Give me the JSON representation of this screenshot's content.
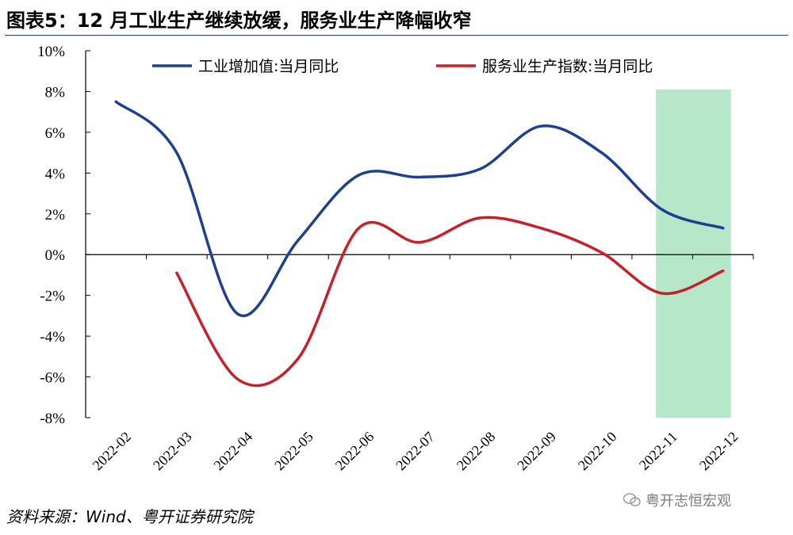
{
  "header": {
    "title": "图表5：12 月工业生产继续放缓，服务业生产降幅收窄"
  },
  "footer": {
    "source": "资料来源：Wind、粤开证券研究院"
  },
  "watermark": {
    "text": "粤开志恒宏观",
    "icon": "wechat-icon"
  },
  "colors": {
    "industry": "#1f3f8f",
    "service": "#c8202a",
    "highlight": "#b6e7c9",
    "axis": "#000000"
  },
  "chart_data": {
    "type": "line",
    "categories": [
      "2022-02",
      "2022-03",
      "2022-04",
      "2022-05",
      "2022-06",
      "2022-07",
      "2022-08",
      "2022-09",
      "2022-10",
      "2022-11",
      "2022-12"
    ],
    "y_ticks": [
      "10%",
      "8%",
      "6%",
      "4%",
      "2%",
      "0%",
      "-2%",
      "-4%",
      "-6%",
      "-8%"
    ],
    "ylim": [
      -8,
      10
    ],
    "y_unit": "%",
    "highlight_range": [
      "2022-11",
      "2022-12"
    ],
    "legend_position": "top",
    "series": [
      {
        "name": "工业增加值:当月同比",
        "color": "#1f3f8f",
        "values": [
          7.5,
          5.0,
          -2.9,
          0.7,
          3.9,
          3.8,
          4.2,
          6.3,
          5.0,
          2.2,
          1.3
        ]
      },
      {
        "name": "服务业生产指数:当月同比",
        "color": "#c8202a",
        "values": [
          null,
          -0.9,
          -6.1,
          -5.1,
          1.3,
          0.6,
          1.8,
          1.3,
          0.1,
          -1.9,
          -0.8
        ]
      }
    ]
  }
}
